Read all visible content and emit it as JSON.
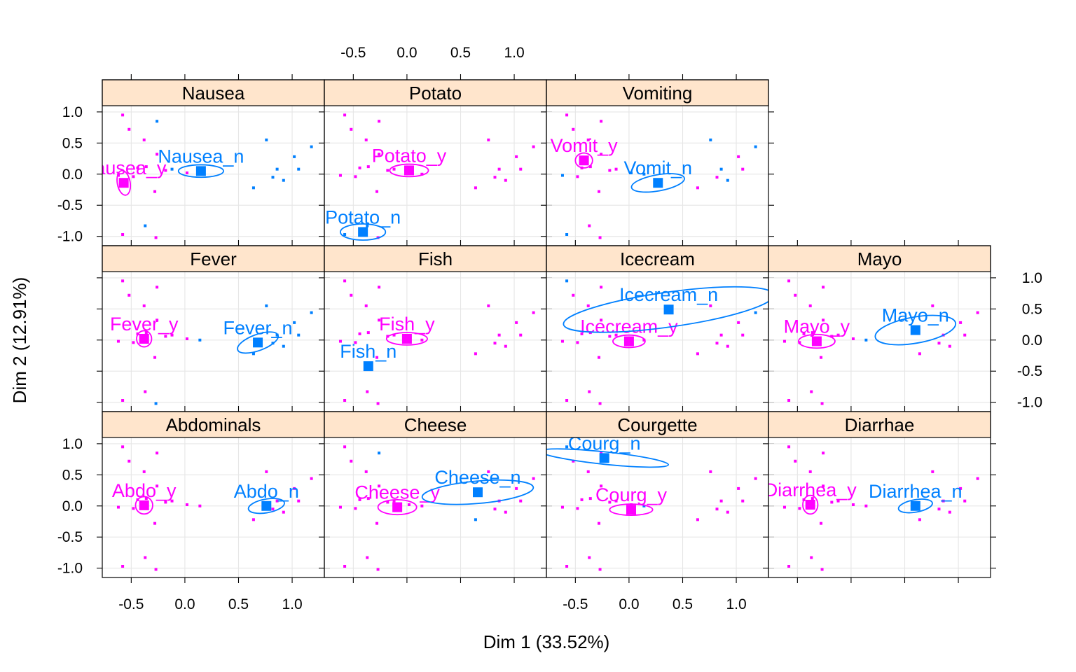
{
  "chart_data": {
    "type": "scatter",
    "layout": "lattice 4 columns x 3 rows",
    "xlabel": "Dim 1 (33.52%)",
    "ylabel": "Dim 2 (12.91%)",
    "xlim": [
      -0.77,
      1.3
    ],
    "ylim": [
      -1.15,
      1.1
    ],
    "x_ticks": [
      "-0.5",
      "0.0",
      "0.5",
      "1.0"
    ],
    "x_tick_values": [
      -0.5,
      0,
      0.5,
      1
    ],
    "y_ticks": [
      "-1.0",
      "-0.5",
      "0.0",
      "0.5",
      "1.0"
    ],
    "y_tick_values": [
      -1,
      -0.5,
      0,
      0.5,
      1
    ],
    "grid": true,
    "colors": {
      "y_level": "#ff00ff",
      "n_level": "#0080ff",
      "strip": "#ffe5cc",
      "grid": "#e6e6e6"
    },
    "individuals_x": [
      -0.58,
      -0.52,
      -0.38,
      -0.26,
      -0.26,
      -0.36,
      -0.44,
      -0.12,
      -0.18,
      0.02,
      0.14,
      -0.62,
      -0.48,
      -0.28,
      -0.58,
      -0.37,
      -0.27,
      0.76,
      0.86,
      1.02,
      1.18,
      0.64,
      0.82,
      0.92,
      1.06
    ],
    "individuals_y": [
      0.95,
      0.72,
      0.55,
      0.85,
      0.32,
      0.12,
      0.1,
      0.08,
      0.06,
      0.02,
      0.0,
      -0.02,
      -0.04,
      -0.28,
      -0.97,
      -0.83,
      -1.02,
      0.55,
      0.08,
      0.28,
      0.44,
      -0.22,
      -0.05,
      -0.1,
      0.08
    ],
    "panels": [
      {
        "strip": "Nausea",
        "col": 0,
        "row": 0,
        "membership": [
          1,
          1,
          1,
          0,
          1,
          1,
          1,
          0,
          1,
          1,
          0,
          1,
          1,
          1,
          1,
          0,
          1,
          0,
          0,
          0,
          0,
          0,
          0,
          0,
          0
        ],
        "categories": [
          {
            "label": "Nausea_y",
            "group": "y",
            "x": -0.57,
            "y": -0.14,
            "rx": 0.06,
            "ry": 0.2,
            "rot": -10
          },
          {
            "label": "Nausea_n",
            "group": "n",
            "x": 0.15,
            "y": 0.05,
            "rx": 0.21,
            "ry": 0.1,
            "rot": 0
          }
        ]
      },
      {
        "strip": "Potato",
        "col": 1,
        "row": 0,
        "membership": [
          1,
          1,
          1,
          1,
          1,
          1,
          1,
          1,
          1,
          1,
          1,
          1,
          1,
          1,
          0,
          0,
          1,
          1,
          1,
          1,
          1,
          1,
          1,
          1,
          1
        ],
        "categories": [
          {
            "label": "Potato_y",
            "group": "y",
            "x": 0.02,
            "y": 0.06,
            "rx": 0.18,
            "ry": 0.1,
            "rot": 0
          },
          {
            "label": "Potato_n",
            "group": "n",
            "x": -0.41,
            "y": -0.93,
            "rx": 0.21,
            "ry": 0.13,
            "rot": 0
          }
        ]
      },
      {
        "strip": "Vomiting",
        "col": 2,
        "row": 0,
        "membership": [
          1,
          1,
          1,
          1,
          1,
          1,
          1,
          1,
          1,
          0,
          0,
          0,
          1,
          1,
          0,
          1,
          1,
          0,
          0,
          1,
          0,
          1,
          1,
          0,
          1
        ],
        "categories": [
          {
            "label": "Vomit_y",
            "group": "y",
            "x": -0.42,
            "y": 0.22,
            "rx": 0.08,
            "ry": 0.12,
            "rot": 0
          },
          {
            "label": "Vomit_n",
            "group": "n",
            "x": 0.27,
            "y": -0.14,
            "rx": 0.25,
            "ry": 0.13,
            "rot": -10
          }
        ]
      },
      {
        "strip": "Fever",
        "col": 0,
        "row": 1,
        "membership": [
          1,
          1,
          1,
          1,
          1,
          1,
          1,
          1,
          1,
          1,
          0,
          1,
          1,
          1,
          1,
          1,
          0,
          0,
          0,
          0,
          0,
          0,
          0,
          0,
          0
        ],
        "categories": [
          {
            "label": "Fever_y",
            "group": "y",
            "x": -0.38,
            "y": 0.02,
            "rx": 0.07,
            "ry": 0.13,
            "rot": 0
          },
          {
            "label": "Fever_n",
            "group": "n",
            "x": 0.68,
            "y": -0.04,
            "rx": 0.2,
            "ry": 0.13,
            "rot": -20
          }
        ]
      },
      {
        "strip": "Fish",
        "col": 1,
        "row": 1,
        "membership": [
          1,
          1,
          1,
          1,
          1,
          1,
          1,
          1,
          1,
          1,
          1,
          1,
          1,
          1,
          1,
          1,
          1,
          1,
          1,
          1,
          1,
          1,
          1,
          1,
          1
        ],
        "categories": [
          {
            "label": "Fish_y",
            "group": "y",
            "x": 0.0,
            "y": 0.02,
            "rx": 0.19,
            "ry": 0.1,
            "rot": 0
          },
          {
            "label": "Fish_n",
            "group": "n",
            "x": -0.36,
            "y": -0.42,
            "rx": 0,
            "ry": 0,
            "rot": 0
          }
        ]
      },
      {
        "strip": "Icecream",
        "col": 2,
        "row": 1,
        "membership": [
          0,
          1,
          1,
          1,
          1,
          1,
          1,
          1,
          1,
          1,
          1,
          1,
          1,
          1,
          1,
          1,
          1,
          1,
          1,
          1,
          0,
          1,
          1,
          1,
          1
        ],
        "categories": [
          {
            "label": "Icecream_y",
            "group": "y",
            "x": 0.0,
            "y": -0.02,
            "rx": 0.15,
            "ry": 0.1,
            "rot": 0
          },
          {
            "label": "Icecream_n",
            "group": "n",
            "x": 0.37,
            "y": 0.49,
            "rx": 0.99,
            "ry": 0.28,
            "rot": -8
          }
        ]
      },
      {
        "strip": "Mayo",
        "col": 3,
        "row": 1,
        "membership": [
          1,
          1,
          1,
          1,
          1,
          1,
          1,
          1,
          1,
          1,
          0,
          1,
          1,
          1,
          1,
          1,
          1,
          1,
          1,
          1,
          1,
          1,
          1,
          1,
          1
        ],
        "categories": [
          {
            "label": "Mayo_y",
            "group": "y",
            "x": -0.32,
            "y": -0.02,
            "rx": 0.17,
            "ry": 0.11,
            "rot": 0
          },
          {
            "label": "Mayo_n",
            "group": "n",
            "x": 0.6,
            "y": 0.16,
            "rx": 0.38,
            "ry": 0.21,
            "rot": -10
          }
        ]
      },
      {
        "strip": "Abdominals",
        "col": 0,
        "row": 2,
        "membership": [
          1,
          1,
          1,
          1,
          1,
          1,
          1,
          1,
          1,
          1,
          1,
          1,
          1,
          1,
          1,
          1,
          1,
          1,
          1,
          1,
          1,
          1,
          1,
          1,
          1
        ],
        "categories": [
          {
            "label": "Abdo_y",
            "group": "y",
            "x": -0.38,
            "y": 0.01,
            "rx": 0.08,
            "ry": 0.14,
            "rot": 0
          },
          {
            "label": "Abdo_n",
            "group": "n",
            "x": 0.76,
            "y": 0.0,
            "rx": 0.17,
            "ry": 0.11,
            "rot": -10
          }
        ]
      },
      {
        "strip": "Cheese",
        "col": 1,
        "row": 2,
        "membership": [
          1,
          1,
          1,
          0,
          1,
          1,
          1,
          1,
          1,
          1,
          1,
          1,
          1,
          1,
          1,
          1,
          1,
          1,
          1,
          1,
          1,
          0,
          1,
          1,
          1
        ],
        "categories": [
          {
            "label": "Cheese_y",
            "group": "y",
            "x": -0.09,
            "y": -0.02,
            "rx": 0.18,
            "ry": 0.12,
            "rot": 0
          },
          {
            "label": "Cheese_n",
            "group": "n",
            "x": 0.66,
            "y": 0.22,
            "rx": 0.52,
            "ry": 0.18,
            "rot": -5
          }
        ]
      },
      {
        "strip": "Courgette",
        "col": 2,
        "row": 2,
        "membership": [
          0,
          1,
          1,
          1,
          1,
          1,
          1,
          1,
          1,
          1,
          0,
          1,
          1,
          1,
          1,
          1,
          1,
          1,
          1,
          1,
          1,
          1,
          1,
          1,
          1
        ],
        "categories": [
          {
            "label": "Courg_y",
            "group": "y",
            "x": 0.02,
            "y": -0.06,
            "rx": 0.2,
            "ry": 0.09,
            "rot": 0
          },
          {
            "label": "Courg_n",
            "group": "n",
            "x": -0.23,
            "y": 0.77,
            "rx": 0.6,
            "ry": 0.1,
            "rot": 6
          }
        ]
      },
      {
        "strip": "Diarrhae",
        "col": 3,
        "row": 2,
        "membership": [
          1,
          1,
          1,
          1,
          1,
          1,
          1,
          1,
          1,
          1,
          1,
          1,
          1,
          1,
          1,
          1,
          1,
          1,
          1,
          1,
          1,
          1,
          1,
          1,
          1
        ],
        "categories": [
          {
            "label": "Diarrhea_y",
            "group": "y",
            "x": -0.38,
            "y": 0.02,
            "rx": 0.07,
            "ry": 0.15,
            "rot": 0
          },
          {
            "label": "Diarrhea_n",
            "group": "n",
            "x": 0.6,
            "y": 0.0,
            "rx": 0.16,
            "ry": 0.1,
            "rot": -10
          }
        ]
      }
    ]
  }
}
